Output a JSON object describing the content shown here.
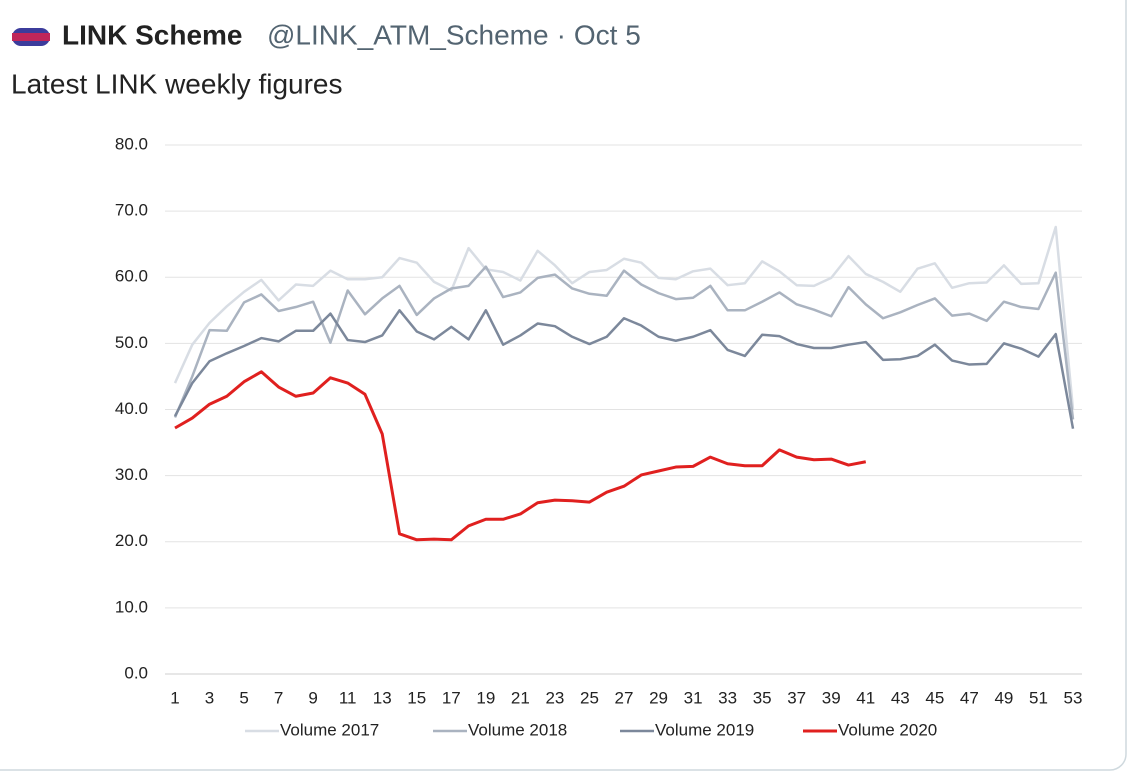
{
  "tweet": {
    "name": "LINK Scheme",
    "handle": "@LINK_ATM_Scheme",
    "separator": "·",
    "date": "Oct 5",
    "text": "Latest LINK weekly figures"
  },
  "chart_data": {
    "type": "line",
    "categories": [
      1,
      null,
      3,
      null,
      5,
      null,
      7,
      null,
      9,
      null,
      11,
      null,
      13,
      null,
      15,
      null,
      17,
      null,
      19,
      null,
      21,
      null,
      23,
      null,
      25,
      null,
      27,
      null,
      29,
      null,
      31,
      null,
      33,
      null,
      35,
      null,
      37,
      null,
      39,
      null,
      41,
      null,
      43,
      null,
      45,
      null,
      47,
      null,
      49,
      null,
      51,
      null,
      53
    ],
    "ylim": [
      0,
      80
    ],
    "yticks": [
      {
        "value": 0,
        "label": "0.0"
      },
      {
        "value": 10,
        "label": "10.0"
      },
      {
        "value": 20,
        "label": "20.0"
      },
      {
        "value": 30,
        "label": "30.0"
      },
      {
        "value": 40,
        "label": "40.0"
      },
      {
        "value": 50,
        "label": "50.0"
      },
      {
        "value": 60,
        "label": "60.0"
      },
      {
        "value": 70,
        "label": "70.0"
      },
      {
        "value": 80,
        "label": "80.0"
      }
    ],
    "grid": true,
    "legend": "bottom",
    "series": [
      {
        "name": "Volume 2017",
        "color": "#d8dde4",
        "values": [
          44,
          49.8,
          53.1,
          55.6,
          57.8,
          59.6,
          56.5,
          58.9,
          58.7,
          61.0,
          59.7,
          59.7,
          60.0,
          62.9,
          62.2,
          59.3,
          58.0,
          64.4,
          61.2,
          60.8,
          59.5,
          64.0,
          61.8,
          59.1,
          60.8,
          61.1,
          62.8,
          62.2,
          59.9,
          59.7,
          60.9,
          61.3,
          58.8,
          59.1,
          62.4,
          60.9,
          58.8,
          58.7,
          59.9,
          63.2,
          60.5,
          59.3,
          57.8,
          61.3,
          62.1,
          58.4,
          59.1,
          59.2,
          61.8,
          59.0,
          59.1,
          67.6,
          40
        ]
      },
      {
        "name": "Volume 2018",
        "color": "#aab3c0",
        "values": [
          38.8,
          45,
          52,
          51.9,
          56.2,
          57.4,
          54.9,
          55.5,
          56.3,
          50.1,
          58.0,
          54.4,
          56.8,
          58.7,
          54.3,
          56.8,
          58.3,
          58.7,
          61.6,
          57.0,
          57.7,
          59.9,
          60.4,
          58.3,
          57.5,
          57.2,
          61.0,
          58.9,
          57.6,
          56.7,
          56.9,
          58.7,
          55.0,
          55.0,
          56.3,
          57.7,
          55.9,
          55.1,
          54.1,
          58.5,
          55.9,
          53.8,
          54.7,
          55.8,
          56.8,
          54.2,
          54.5,
          53.4,
          56.3,
          55.5,
          55.2,
          60.7,
          38.5
        ]
      },
      {
        "name": "Volume 2019",
        "color": "#7c889b",
        "values": [
          39,
          44,
          47.3,
          48.5,
          49.6,
          50.8,
          50.3,
          51.9,
          51.9,
          54.5,
          50.5,
          50.2,
          51.2,
          55.0,
          51.8,
          50.6,
          52.5,
          50.6,
          55.0,
          49.8,
          51.2,
          53.0,
          52.6,
          51.0,
          49.9,
          51.0,
          53.8,
          52.7,
          51.0,
          50.4,
          51.0,
          52.0,
          49.0,
          48.1,
          51.3,
          51.1,
          49.9,
          49.3,
          49.3,
          49.8,
          50.2,
          47.5,
          47.6,
          48.1,
          49.8,
          47.4,
          46.8,
          46.9,
          50.0,
          49.2,
          48.0,
          51.4,
          37.1
        ]
      },
      {
        "name": "Volume 2020",
        "color": "#e0201f",
        "values": [
          37.2,
          38.7,
          40.8,
          42.0,
          44.2,
          45.7,
          43.4,
          42.0,
          42.5,
          44.8,
          44.0,
          42.3,
          36.3,
          21.2,
          20.3,
          20.4,
          20.3,
          22.4,
          23.4,
          23.4,
          24.2,
          25.9,
          26.3,
          26.2,
          26.0,
          27.5,
          28.4,
          30.1,
          30.7,
          31.3,
          31.4,
          32.8,
          31.8,
          31.5,
          31.5,
          33.9,
          32.8,
          32.4,
          32.5,
          31.6,
          32.1,
          null,
          null,
          null,
          null,
          null,
          null,
          null,
          null,
          null,
          null,
          null,
          null
        ]
      }
    ]
  }
}
